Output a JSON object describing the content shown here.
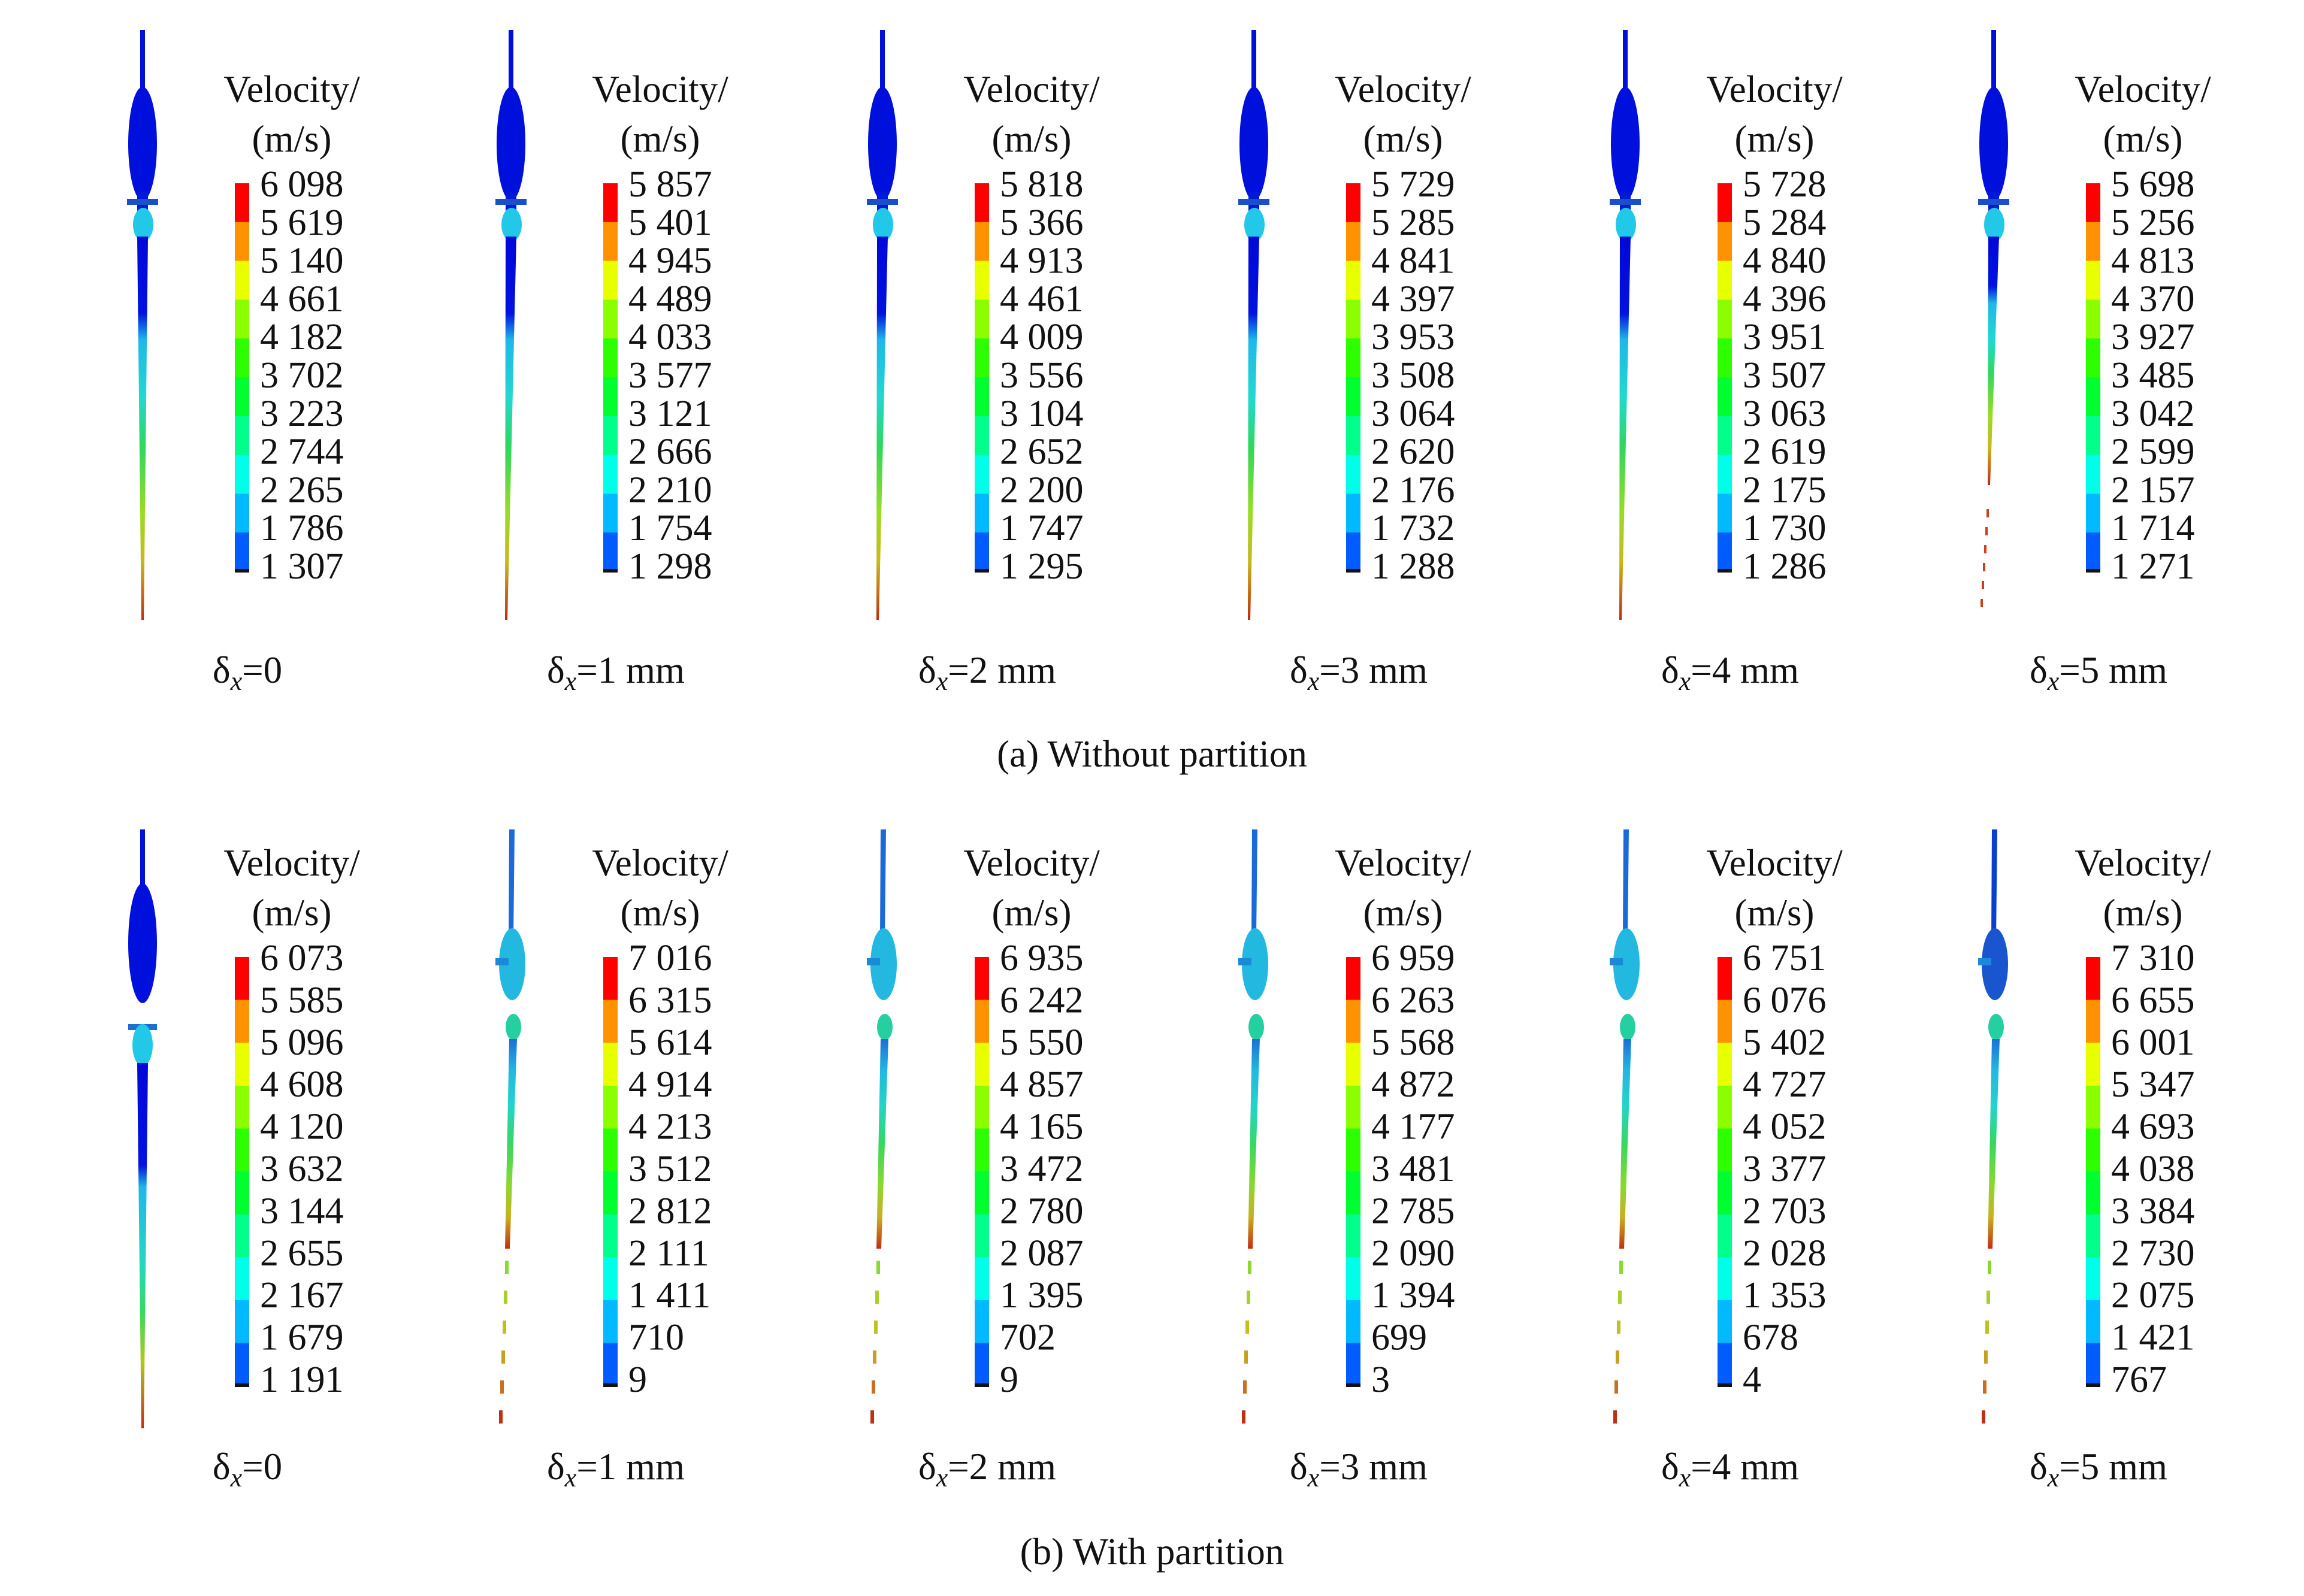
{
  "colors": [
    "#0000ff",
    "#005cff",
    "#00b9ff",
    "#00ffe8",
    "#00ff8b",
    "#00ff2e",
    "#2eff00",
    "#8bff00",
    "#e8ff00",
    "#ff9200",
    "#ff0000"
  ],
  "rows": [
    {
      "caption": "(a) Without partition",
      "panels": [
        {
          "title_line1": "Velocity/",
          "title_line2": "(m/s)",
          "delta_symbol": "δ",
          "delta_sub": "x",
          "delta_value": "=0",
          "style": "a0",
          "ticks": [
            "6 098",
            "5 619",
            "5 140",
            "4 661",
            "4 182",
            "3 702",
            "3 223",
            "2 744",
            "2 265",
            "1 786",
            "1 307"
          ]
        },
        {
          "title_line1": "Velocity/",
          "title_line2": "(m/s)",
          "delta_symbol": "δ",
          "delta_sub": "x",
          "delta_value": "=1 mm",
          "style": "a",
          "ticks": [
            "5 857",
            "5 401",
            "4 945",
            "4 489",
            "4 033",
            "3 577",
            "3 121",
            "2 666",
            "2 210",
            "1 754",
            "1 298"
          ]
        },
        {
          "title_line1": "Velocity/",
          "title_line2": "(m/s)",
          "delta_symbol": "δ",
          "delta_sub": "x",
          "delta_value": "=2 mm",
          "style": "a",
          "ticks": [
            "5 818",
            "5 366",
            "4 913",
            "4 461",
            "4 009",
            "3 556",
            "3 104",
            "2 652",
            "2 200",
            "1 747",
            "1 295"
          ]
        },
        {
          "title_line1": "Velocity/",
          "title_line2": "(m/s)",
          "delta_symbol": "δ",
          "delta_sub": "x",
          "delta_value": "=3 mm",
          "style": "a",
          "ticks": [
            "5 729",
            "5 285",
            "4 841",
            "4 397",
            "3 953",
            "3 508",
            "3 064",
            "2 620",
            "2 176",
            "1 732",
            "1 288"
          ]
        },
        {
          "title_line1": "Velocity/",
          "title_line2": "(m/s)",
          "delta_symbol": "δ",
          "delta_sub": "x",
          "delta_value": "=4 mm",
          "style": "a",
          "ticks": [
            "5 728",
            "5 284",
            "4 840",
            "4 396",
            "3 951",
            "3 507",
            "3 063",
            "2 619",
            "2 175",
            "1 730",
            "1 286"
          ]
        },
        {
          "title_line1": "Velocity/",
          "title_line2": "(m/s)",
          "delta_symbol": "δ",
          "delta_sub": "x",
          "delta_value": "=5 mm",
          "style": "a5",
          "ticks": [
            "5 698",
            "5 256",
            "4 813",
            "4 370",
            "3 927",
            "3 485",
            "3 042",
            "2 599",
            "2 157",
            "1 714",
            "1 271"
          ]
        }
      ]
    },
    {
      "caption": "(b) With partition",
      "panels": [
        {
          "title_line1": "Velocity/",
          "title_line2": "(m/s)",
          "delta_symbol": "δ",
          "delta_sub": "x",
          "delta_value": "=0",
          "style": "b0",
          "ticks": [
            "6 073",
            "5 585",
            "5 096",
            "4 608",
            "4 120",
            "3 632",
            "3 144",
            "2 655",
            "2 167",
            "1 679",
            "1 191"
          ]
        },
        {
          "title_line1": "Velocity/",
          "title_line2": "(m/s)",
          "delta_symbol": "δ",
          "delta_sub": "x",
          "delta_value": "=1 mm",
          "style": "b",
          "ticks": [
            "7 016",
            "6 315",
            "5 614",
            "4 914",
            "4 213",
            "3 512",
            "2 812",
            "2 111",
            "1 411",
            "710",
            "9"
          ]
        },
        {
          "title_line1": "Velocity/",
          "title_line2": "(m/s)",
          "delta_symbol": "δ",
          "delta_sub": "x",
          "delta_value": "=2 mm",
          "style": "b",
          "ticks": [
            "6 935",
            "6 242",
            "5 550",
            "4 857",
            "4 165",
            "3 472",
            "2 780",
            "2 087",
            "1 395",
            "702",
            "9"
          ]
        },
        {
          "title_line1": "Velocity/",
          "title_line2": "(m/s)",
          "delta_symbol": "δ",
          "delta_sub": "x",
          "delta_value": "=3 mm",
          "style": "b",
          "ticks": [
            "6 959",
            "6 263",
            "5 568",
            "4 872",
            "4 177",
            "3 481",
            "2 785",
            "2 090",
            "1 394",
            "699",
            "3"
          ]
        },
        {
          "title_line1": "Velocity/",
          "title_line2": "(m/s)",
          "delta_symbol": "δ",
          "delta_sub": "x",
          "delta_value": "=4 mm",
          "style": "b",
          "ticks": [
            "6 751",
            "6 076",
            "5 402",
            "4 727",
            "4 052",
            "3 377",
            "2 703",
            "2 028",
            "1 353",
            "678",
            "4"
          ]
        },
        {
          "title_line1": "Velocity/",
          "title_line2": "(m/s)",
          "delta_symbol": "δ",
          "delta_sub": "x",
          "delta_value": "=5 mm",
          "style": "b5",
          "ticks": [
            "7 310",
            "6 655",
            "6 001",
            "5 347",
            "4 693",
            "4 038",
            "3 384",
            "2 730",
            "2 075",
            "1 421",
            "767"
          ]
        }
      ]
    }
  ]
}
